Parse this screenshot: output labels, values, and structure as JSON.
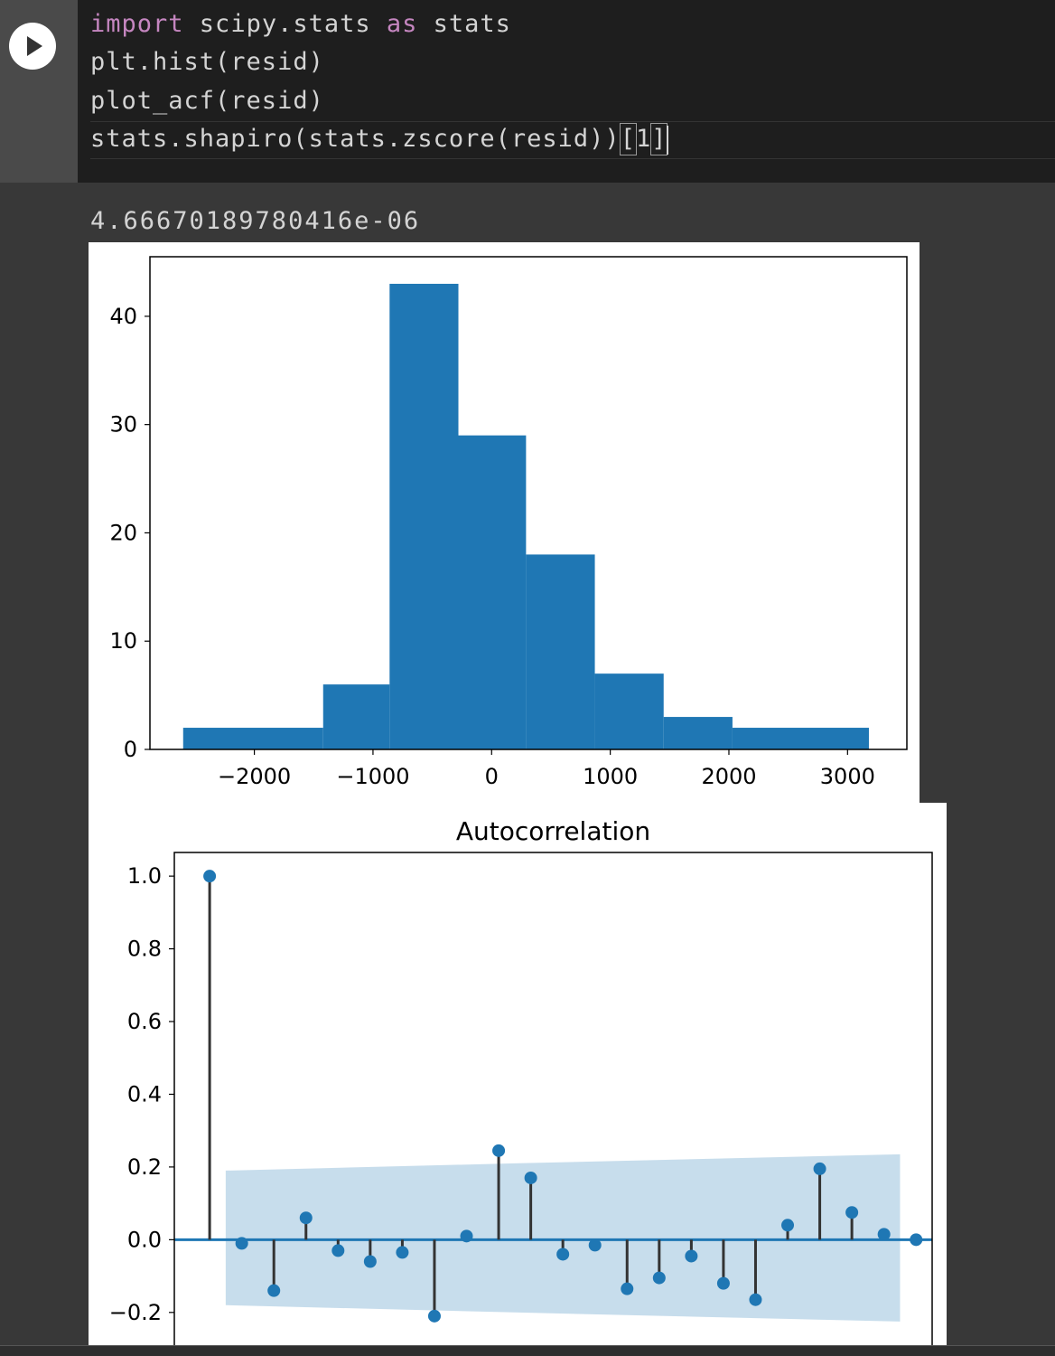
{
  "code": {
    "lines": [
      {
        "kw1": "import",
        "mid": " scipy.stats ",
        "kw2": "as",
        "end": " stats"
      },
      "plt.hist(resid)",
      "plot_acf(resid)",
      {
        "pre": "stats.shapiro(stats.zscore(resid))",
        "b1": "[",
        "num": "1",
        "b2": "]"
      }
    ]
  },
  "output": {
    "value": "4.66670189780416e-06"
  },
  "icons": {
    "run": "play-icon"
  },
  "colors": {
    "bar": "#1f77b4",
    "band": "#1f77b4",
    "stem": "#333333"
  },
  "chart_data": [
    {
      "type": "bar",
      "title": "",
      "bins": [
        {
          "x0": -2600,
          "x1": -1420,
          "value": 2
        },
        {
          "x0": -1420,
          "x1": -860,
          "value": 6
        },
        {
          "x0": -860,
          "x1": -280,
          "value": 43
        },
        {
          "x0": -280,
          "x1": 290,
          "value": 29
        },
        {
          "x0": 290,
          "x1": 870,
          "value": 18
        },
        {
          "x0": 870,
          "x1": 1450,
          "value": 7
        },
        {
          "x0": 1450,
          "x1": 2030,
          "value": 3
        },
        {
          "x0": 2030,
          "x1": 3180,
          "value": 2
        }
      ],
      "xlim": [
        -2880,
        3500
      ],
      "ylim": [
        0,
        45.5
      ],
      "xticks": [
        {
          "v": -2000,
          "label": "−2000"
        },
        {
          "v": -1000,
          "label": "−1000"
        },
        {
          "v": 0,
          "label": "0"
        },
        {
          "v": 1000,
          "label": "1000"
        },
        {
          "v": 2000,
          "label": "2000"
        },
        {
          "v": 3000,
          "label": "3000"
        }
      ],
      "yticks": [
        {
          "v": 0,
          "label": "0"
        },
        {
          "v": 10,
          "label": "10"
        },
        {
          "v": 20,
          "label": "20"
        },
        {
          "v": 30,
          "label": "30"
        },
        {
          "v": 40,
          "label": "40"
        }
      ]
    },
    {
      "type": "scatter",
      "title": "Autocorrelation",
      "x": [
        0,
        1,
        2,
        3,
        4,
        5,
        6,
        7,
        8,
        9,
        10,
        11,
        12,
        13,
        14,
        15,
        16,
        17,
        18,
        19,
        20,
        21,
        22
      ],
      "values": [
        1.0,
        -0.01,
        -0.14,
        0.06,
        -0.03,
        -0.06,
        -0.035,
        -0.21,
        0.01,
        0.245,
        0.17,
        -0.04,
        -0.015,
        -0.135,
        -0.105,
        -0.045,
        -0.12,
        -0.165,
        0.04,
        0.195,
        0.075,
        0.015,
        0.0
      ],
      "confint": [
        {
          "x": 0.5,
          "upper": 0.19,
          "lower": -0.18
        },
        {
          "x": 9.5,
          "upper": 0.21,
          "lower": -0.2
        },
        {
          "x": 21.5,
          "upper": 0.235,
          "lower": -0.225
        }
      ],
      "xlim": [
        -1.1,
        22.5
      ],
      "ylim": [
        -0.29,
        1.065
      ],
      "yticks": [
        {
          "v": -0.2,
          "label": "−0.2"
        },
        {
          "v": 0.0,
          "label": "0.0"
        },
        {
          "v": 0.2,
          "label": "0.2"
        },
        {
          "v": 0.4,
          "label": "0.4"
        },
        {
          "v": 0.6,
          "label": "0.6"
        },
        {
          "v": 0.8,
          "label": "0.8"
        },
        {
          "v": 1.0,
          "label": "1.0"
        }
      ]
    }
  ]
}
